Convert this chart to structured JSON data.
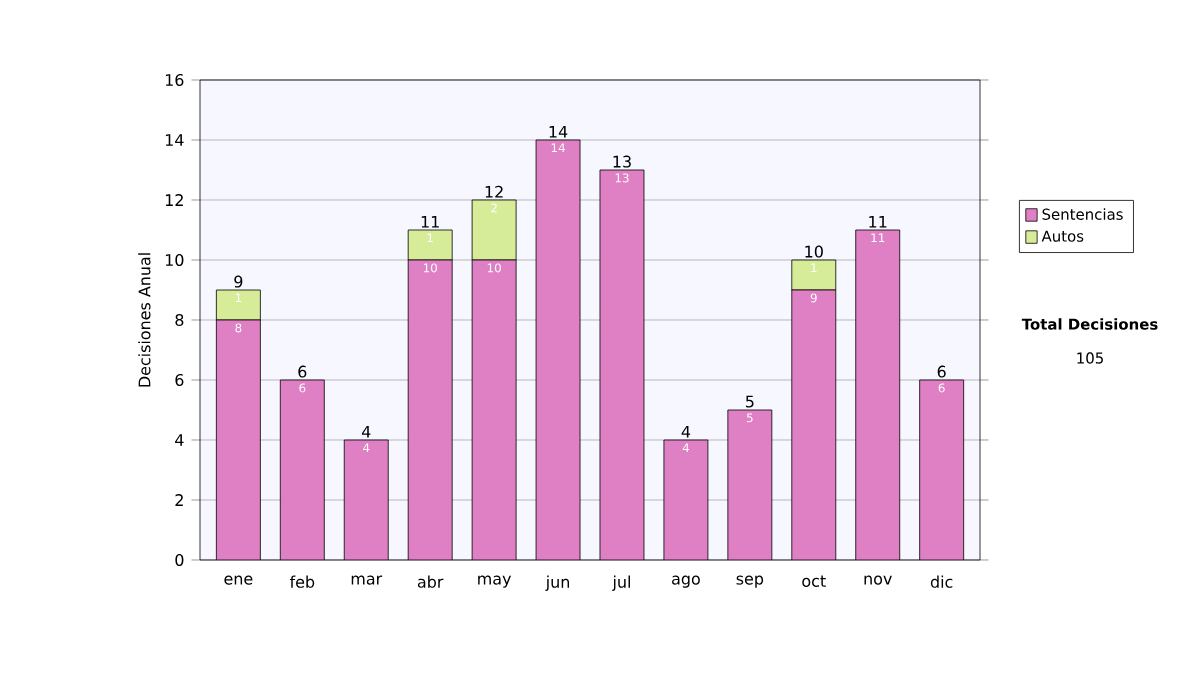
{
  "chart_data": {
    "type": "bar",
    "stacked": true,
    "ylabel": "Decisiones Anual",
    "categories": [
      "ene",
      "feb",
      "mar",
      "abr",
      "may",
      "jun",
      "jul",
      "ago",
      "sep",
      "oct",
      "nov",
      "dic"
    ],
    "series": [
      {
        "name": "Sentencias",
        "color": "#df7fc4",
        "values": [
          8,
          6,
          4,
          10,
          10,
          14,
          13,
          4,
          5,
          9,
          11,
          6
        ],
        "value_labels": [
          "8",
          "6",
          "4",
          "10",
          "10",
          "14",
          "13",
          "4",
          "5",
          "9",
          "11",
          "6"
        ]
      },
      {
        "name": "Autos",
        "color": "#d6ec98",
        "values": [
          1,
          0,
          0,
          1,
          2,
          0,
          0,
          0,
          0,
          1,
          0,
          0
        ],
        "value_labels": [
          "1",
          null,
          null,
          "1",
          "2",
          null,
          null,
          null,
          null,
          "1",
          null,
          null
        ]
      }
    ],
    "totals": [
      "9",
      "6",
      "4",
      "11",
      "12",
      "14",
      "13",
      "4",
      "5",
      "10",
      "11",
      "6"
    ],
    "ylim": [
      0,
      16
    ],
    "yticks": [
      0,
      2,
      4,
      6,
      8,
      10,
      12,
      14,
      16
    ],
    "grid": "y",
    "legend": "right",
    "annotations": [
      "**Total Decisiones**",
      "105"
    ]
  }
}
